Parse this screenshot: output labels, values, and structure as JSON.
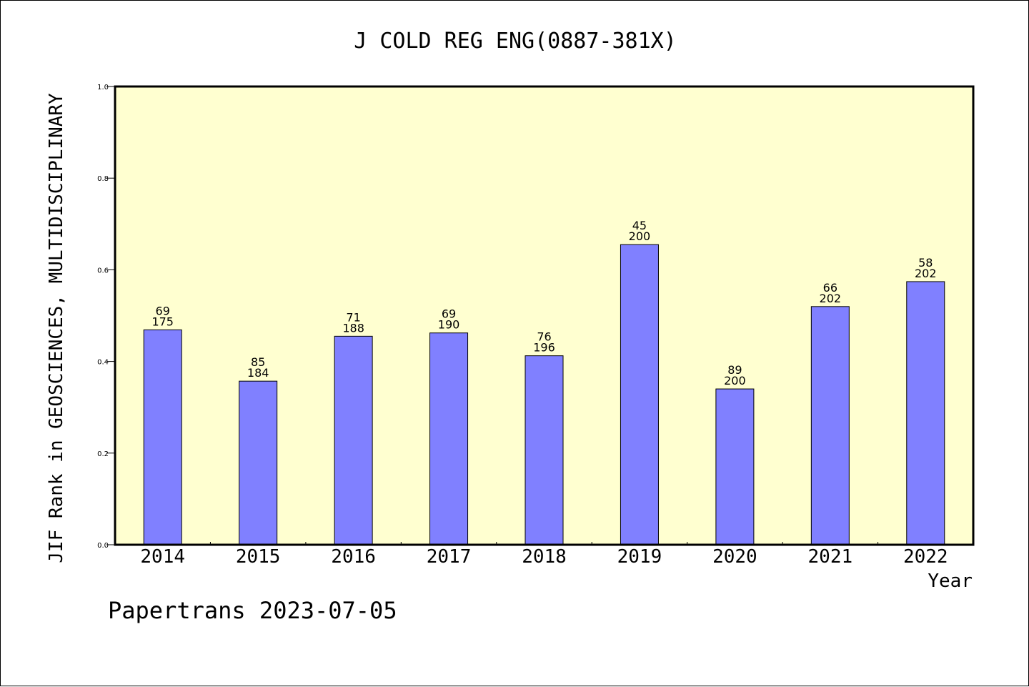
{
  "chart_data": {
    "type": "bar",
    "title": "J COLD REG ENG(0887-381X)",
    "xlabel": "Year",
    "ylabel": "JIF Rank in GEOSCIENCES, MULTIDISCIPLINARY",
    "ylim": [
      0,
      1.0
    ],
    "yticks": [
      "0.0",
      "0.2",
      "0.4",
      "0.6",
      "0.8",
      "1.0"
    ],
    "categories": [
      "2014",
      "2015",
      "2016",
      "2017",
      "2018",
      "2019",
      "2020",
      "2021",
      "2022"
    ],
    "values": [
      0.469,
      0.357,
      0.455,
      0.4622,
      0.4124,
      0.655,
      0.34,
      0.5198,
      0.5742
    ],
    "rank": [
      "69",
      "85",
      "71",
      "69",
      "76",
      "45",
      "89",
      "66",
      "58"
    ],
    "total": [
      "175",
      "184",
      "188",
      "190",
      "196",
      "200",
      "200",
      "202",
      "202"
    ],
    "grid": false
  },
  "footer": "Papertrans 2023-07-05",
  "colors": {
    "plot_background": "#ffffd0",
    "bar_fill": "#8080ff",
    "bar_stroke": "#000000",
    "axis": "#000000"
  }
}
